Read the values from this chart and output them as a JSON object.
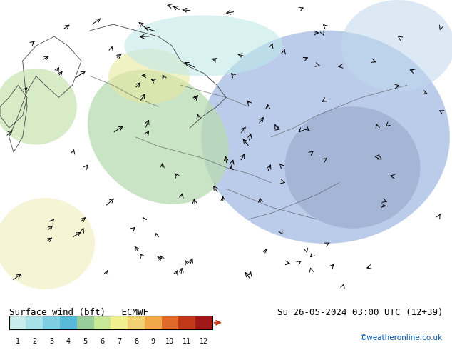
{
  "title_left": "Surface wind (bft)   ECMWF",
  "title_right": "Su 26-05-2024 03:00 UTC (12+39)",
  "credit": "©weatheronline.co.uk",
  "colorbar_levels": [
    1,
    2,
    3,
    4,
    5,
    6,
    7,
    8,
    9,
    10,
    11,
    12
  ],
  "colorbar_colors": [
    "#c8f0f0",
    "#a0e0f0",
    "#78cce8",
    "#50b4e0",
    "#90d090",
    "#c8e890",
    "#f0f0a0",
    "#f0d070",
    "#f0a040",
    "#e06020",
    "#c03010",
    "#a01010"
  ],
  "colorbar_label_colors": [
    "#c8f0f0",
    "#a0e0f0",
    "#78cce8",
    "#50b4e0",
    "#90d090",
    "#c8e890",
    "#f0f0a0",
    "#f0d070",
    "#f0a040",
    "#e06020",
    "#c03010",
    "#a01010"
  ],
  "map_bg": "#e8f8ff",
  "fig_bg": "#ffffff",
  "bottom_bar_bg": "#ffffff",
  "credit_color": "#0055aa",
  "border_color": "#444444",
  "arrow_color": "#000000",
  "land_colors": {
    "calm_light_cyan": "#b8ecf0",
    "light_green": "#c0e8a0",
    "light_yellow": "#f0f0c0",
    "light_blue": "#b0d4f0",
    "medium_blue": "#a0b8e0",
    "pale_blue": "#c8dff0"
  }
}
